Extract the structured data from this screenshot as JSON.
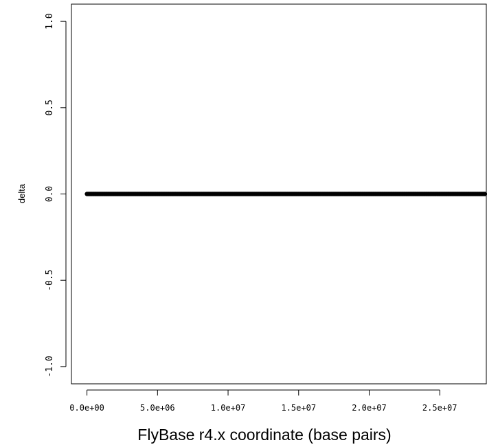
{
  "chart_data": {
    "type": "scatter",
    "title": "",
    "xlabel": "FlyBase r4.x coordinate (base pairs)",
    "ylabel": "delta",
    "xlim": [
      -1100000,
      28300000
    ],
    "ylim": [
      -1.1,
      1.1
    ],
    "x_ticks": [
      {
        "value": 0,
        "label": "0.0e+00"
      },
      {
        "value": 5000000,
        "label": "5.0e+06"
      },
      {
        "value": 10000000,
        "label": "1.0e+07"
      },
      {
        "value": 15000000,
        "label": "1.5e+07"
      },
      {
        "value": 20000000,
        "label": "2.0e+07"
      },
      {
        "value": 25000000,
        "label": "2.5e+07"
      }
    ],
    "y_ticks": [
      {
        "value": -1.0,
        "label": "-1.0"
      },
      {
        "value": -0.5,
        "label": "-0.5"
      },
      {
        "value": 0.0,
        "label": "0.0"
      },
      {
        "value": 0.5,
        "label": "0.5"
      },
      {
        "value": 1.0,
        "label": "1.0"
      }
    ],
    "series": [
      {
        "x_range": [
          0,
          28200000
        ],
        "y": 0.0,
        "point_count_estimate": 400,
        "color": "#000000"
      }
    ],
    "grid": false,
    "legend": "none"
  }
}
